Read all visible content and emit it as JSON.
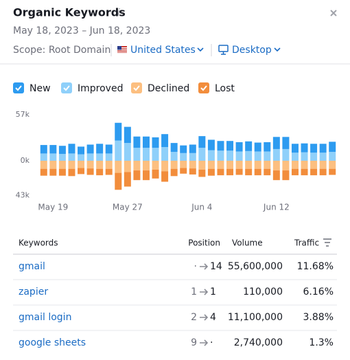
{
  "header": {
    "title": "Organic Keywords",
    "date_range": "May 18, 2023 – Jun 18, 2023",
    "scope": "Scope: Root Domain",
    "country": "United States",
    "device": "Desktop"
  },
  "chart_data": {
    "type": "bar",
    "stacked": true,
    "categories": [
      null,
      "May 19",
      null,
      null,
      null,
      null,
      null,
      null,
      null,
      "May 27",
      null,
      null,
      null,
      null,
      null,
      null,
      null,
      "Jun 4",
      null,
      null,
      null,
      null,
      null,
      null,
      null,
      "Jun 12",
      null,
      null,
      null,
      null,
      null,
      null
    ],
    "series": [
      {
        "name": "New",
        "color": "#2d9bf0",
        "values": [
          10500,
          10500,
          10000,
          12000,
          9500,
          11000,
          12000,
          11000,
          22000,
          20000,
          14000,
          14000,
          13000,
          16000,
          11000,
          9500,
          10500,
          14500,
          13000,
          12000,
          12000,
          11500,
          12000,
          11000,
          11500,
          15000,
          15000,
          11000,
          11000,
          11000,
          11000,
          12500
        ]
      },
      {
        "name": "Improved",
        "color": "#8fd0fa",
        "values": [
          9000,
          9000,
          8500,
          9000,
          8000,
          9000,
          9000,
          9000,
          25000,
          22000,
          16000,
          16000,
          16000,
          17000,
          11000,
          9500,
          9500,
          16000,
          13000,
          12500,
          12500,
          11500,
          12000,
          11500,
          11500,
          14500,
          14500,
          10000,
          10500,
          10000,
          10000,
          11000
        ]
      },
      {
        "name": "Declined",
        "color": "#fcbf80",
        "values": [
          -10000,
          -10000,
          -10000,
          -10000,
          -9000,
          -9500,
          -10000,
          -10000,
          -15000,
          -14000,
          -12000,
          -12000,
          -11000,
          -13000,
          -10000,
          -9000,
          -9500,
          -11000,
          -10000,
          -10000,
          -10000,
          -10000,
          -10000,
          -10000,
          -10000,
          -12000,
          -12000,
          -10000,
          -10000,
          -10000,
          -10000,
          -10000
        ]
      },
      {
        "name": "Lost",
        "color": "#f28d3c",
        "values": [
          -8500,
          -8500,
          -8500,
          -9000,
          -7500,
          -8000,
          -8000,
          -7500,
          -21000,
          -18000,
          -12000,
          -12000,
          -11000,
          -13000,
          -9000,
          -7000,
          -7500,
          -9000,
          -8500,
          -8000,
          -8000,
          -7500,
          -8000,
          -8000,
          -8000,
          -12000,
          -12000,
          -8000,
          -8000,
          -8000,
          -8000,
          -7500
        ]
      }
    ],
    "ylim": [
      -43000,
      57000
    ],
    "yticks": [
      {
        "value": 57000,
        "label": "57k"
      },
      {
        "value": 0,
        "label": "0k"
      },
      {
        "value": -43000,
        "label": "43k"
      }
    ]
  },
  "table": {
    "columns": [
      "Keywords",
      "Position",
      "Volume",
      "Traffic"
    ],
    "rows": [
      [
        "gmail",
        "·",
        "14",
        "55,600,000",
        "11.68%"
      ],
      [
        "zapier",
        "1",
        "1",
        "110,000",
        "6.16%"
      ],
      [
        "gmail login",
        "2",
        "4",
        "11,100,000",
        "3.88%"
      ],
      [
        "google sheets",
        "9",
        "·",
        "2,740,000",
        "1.3%"
      ]
    ]
  }
}
